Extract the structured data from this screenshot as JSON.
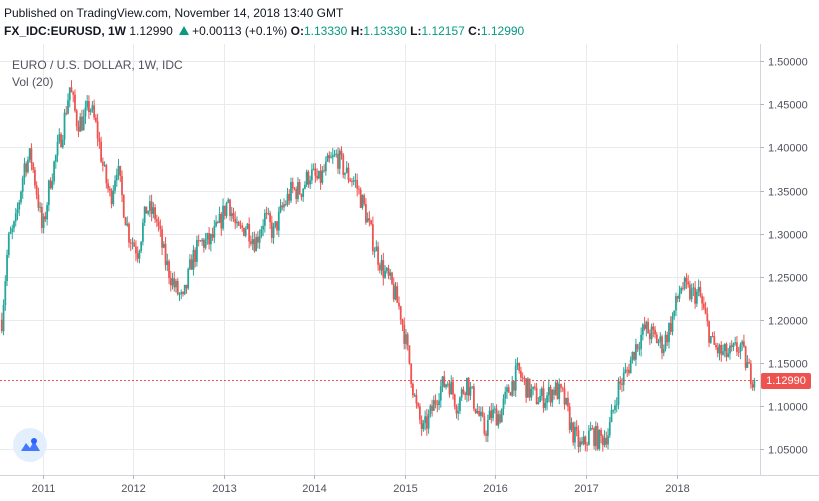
{
  "header": {
    "published": "Published on TradingView.com, November 14, 2018 13:40 GMT",
    "symbol": "FX_IDC:EURUSD, 1W",
    "last": "1.12990",
    "change": "+0.00113 (+0.1%)",
    "o_label": "O:",
    "o": "1.13330",
    "h_label": "H:",
    "h": "1.13330",
    "l_label": "L:",
    "l": "1.12157",
    "c_label": "C:",
    "c": "1.12990"
  },
  "legend": {
    "title": "EURO / U.S. DOLLAR, 1W, IDC",
    "volume": "Vol (20)"
  },
  "price_label": "1.12990",
  "colors": {
    "up": "#26a69a",
    "down": "#ef5350",
    "grid": "#e8eaee",
    "axis_text": "#50535e",
    "price_line": "#ef5350"
  },
  "chart_data": {
    "type": "candlestick",
    "title": "EURO / U.S. DOLLAR, 1W, IDC",
    "y_ticks": [
      "1.50000",
      "1.45000",
      "1.40000",
      "1.35000",
      "1.30000",
      "1.25000",
      "1.20000",
      "1.15000",
      "1.10000",
      "1.05000"
    ],
    "x_ticks": [
      "2011",
      "2012",
      "2013",
      "2014",
      "2015",
      "2016",
      "2017",
      "2018"
    ],
    "ylim": [
      1.02,
      1.52
    ],
    "xlim": [
      2010.53,
      2018.92
    ],
    "last_price": 1.1299,
    "grid": true,
    "price_path": [
      [
        2010.55,
        1.2
      ],
      [
        2010.62,
        1.29
      ],
      [
        2010.7,
        1.31
      ],
      [
        2010.8,
        1.38
      ],
      [
        2010.87,
        1.39
      ],
      [
        2010.95,
        1.34
      ],
      [
        2011.0,
        1.3
      ],
      [
        2011.08,
        1.36
      ],
      [
        2011.15,
        1.39
      ],
      [
        2011.22,
        1.42
      ],
      [
        2011.3,
        1.47
      ],
      [
        2011.38,
        1.43
      ],
      [
        2011.45,
        1.43
      ],
      [
        2011.52,
        1.45
      ],
      [
        2011.6,
        1.42
      ],
      [
        2011.68,
        1.37
      ],
      [
        2011.75,
        1.34
      ],
      [
        2011.82,
        1.38
      ],
      [
        2011.88,
        1.34
      ],
      [
        2011.95,
        1.3
      ],
      [
        2012.05,
        1.28
      ],
      [
        2012.15,
        1.33
      ],
      [
        2012.25,
        1.32
      ],
      [
        2012.35,
        1.27
      ],
      [
        2012.45,
        1.24
      ],
      [
        2012.55,
        1.22
      ],
      [
        2012.65,
        1.27
      ],
      [
        2012.75,
        1.29
      ],
      [
        2012.85,
        1.29
      ],
      [
        2012.95,
        1.31
      ],
      [
        2013.05,
        1.34
      ],
      [
        2013.15,
        1.3
      ],
      [
        2013.25,
        1.31
      ],
      [
        2013.35,
        1.29
      ],
      [
        2013.45,
        1.32
      ],
      [
        2013.55,
        1.3
      ],
      [
        2013.65,
        1.33
      ],
      [
        2013.75,
        1.35
      ],
      [
        2013.85,
        1.35
      ],
      [
        2013.95,
        1.37
      ],
      [
        2014.05,
        1.36
      ],
      [
        2014.15,
        1.38
      ],
      [
        2014.25,
        1.39
      ],
      [
        2014.35,
        1.37
      ],
      [
        2014.45,
        1.36
      ],
      [
        2014.55,
        1.33
      ],
      [
        2014.65,
        1.29
      ],
      [
        2014.75,
        1.26
      ],
      [
        2014.85,
        1.24
      ],
      [
        2014.95,
        1.21
      ],
      [
        2015.05,
        1.15
      ],
      [
        2015.12,
        1.1
      ],
      [
        2015.2,
        1.07
      ],
      [
        2015.28,
        1.09
      ],
      [
        2015.38,
        1.12
      ],
      [
        2015.48,
        1.13
      ],
      [
        2015.58,
        1.1
      ],
      [
        2015.68,
        1.13
      ],
      [
        2015.78,
        1.1
      ],
      [
        2015.88,
        1.07
      ],
      [
        2015.95,
        1.09
      ],
      [
        2016.05,
        1.09
      ],
      [
        2016.15,
        1.12
      ],
      [
        2016.25,
        1.14
      ],
      [
        2016.35,
        1.12
      ],
      [
        2016.45,
        1.11
      ],
      [
        2016.55,
        1.11
      ],
      [
        2016.65,
        1.12
      ],
      [
        2016.75,
        1.11
      ],
      [
        2016.85,
        1.07
      ],
      [
        2016.95,
        1.05
      ],
      [
        2017.05,
        1.07
      ],
      [
        2017.15,
        1.06
      ],
      [
        2017.25,
        1.07
      ],
      [
        2017.35,
        1.12
      ],
      [
        2017.45,
        1.14
      ],
      [
        2017.55,
        1.17
      ],
      [
        2017.65,
        1.19
      ],
      [
        2017.75,
        1.18
      ],
      [
        2017.85,
        1.17
      ],
      [
        2017.95,
        1.2
      ],
      [
        2018.05,
        1.24
      ],
      [
        2018.15,
        1.23
      ],
      [
        2018.25,
        1.23
      ],
      [
        2018.32,
        1.2
      ],
      [
        2018.4,
        1.17
      ],
      [
        2018.5,
        1.16
      ],
      [
        2018.6,
        1.16
      ],
      [
        2018.7,
        1.17
      ],
      [
        2018.8,
        1.14
      ],
      [
        2018.87,
        1.13
      ]
    ]
  }
}
